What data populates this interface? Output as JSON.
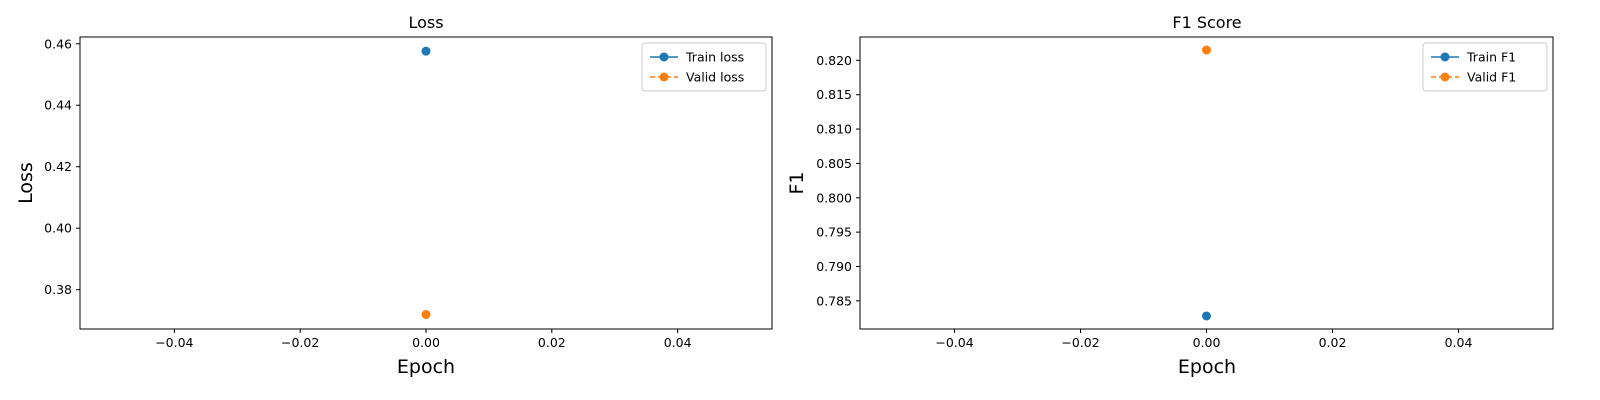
{
  "chart_data": [
    {
      "type": "line",
      "title": "Loss",
      "xlabel": "Epoch",
      "ylabel": "Loss",
      "xlim": [
        -0.055,
        0.055
      ],
      "ylim": [
        0.3672,
        0.4622
      ],
      "xticks": [
        -0.04,
        -0.02,
        0.0,
        0.02,
        0.04
      ],
      "xtick_labels": [
        "−0.04",
        "−0.02",
        "0.00",
        "0.02",
        "0.04"
      ],
      "yticks": [
        0.38,
        0.4,
        0.42,
        0.44,
        0.46
      ],
      "ytick_labels": [
        "0.38",
        "0.40",
        "0.42",
        "0.44",
        "0.46"
      ],
      "grid": false,
      "legend_position": "top-right",
      "series": [
        {
          "name": "Train loss",
          "x": [
            0
          ],
          "y": [
            0.4576
          ],
          "color": "#1f77b4",
          "linestyle": "solid",
          "marker": "circle"
        },
        {
          "name": "Valid loss",
          "x": [
            0
          ],
          "y": [
            0.3719
          ],
          "color": "#ff7f0e",
          "linestyle": "dashed",
          "marker": "circle"
        }
      ]
    },
    {
      "type": "line",
      "title": "F1 Score",
      "xlabel": "Epoch",
      "ylabel": "F1",
      "xlim": [
        -0.055,
        0.055
      ],
      "ylim": [
        0.7809,
        0.8234
      ],
      "xticks": [
        -0.04,
        -0.02,
        0.0,
        0.02,
        0.04
      ],
      "xtick_labels": [
        "−0.04",
        "−0.02",
        "0.00",
        "0.02",
        "0.04"
      ],
      "yticks": [
        0.785,
        0.79,
        0.795,
        0.8,
        0.805,
        0.81,
        0.815,
        0.82
      ],
      "ytick_labels": [
        "0.785",
        "0.790",
        "0.795",
        "0.800",
        "0.805",
        "0.810",
        "0.815",
        "0.820"
      ],
      "grid": false,
      "legend_position": "top-right",
      "series": [
        {
          "name": "Train F1",
          "x": [
            0
          ],
          "y": [
            0.7828
          ],
          "color": "#1f77b4",
          "linestyle": "solid",
          "marker": "circle"
        },
        {
          "name": "Valid F1",
          "x": [
            0
          ],
          "y": [
            0.8215
          ],
          "color": "#ff7f0e",
          "linestyle": "dashed",
          "marker": "circle"
        }
      ]
    }
  ]
}
